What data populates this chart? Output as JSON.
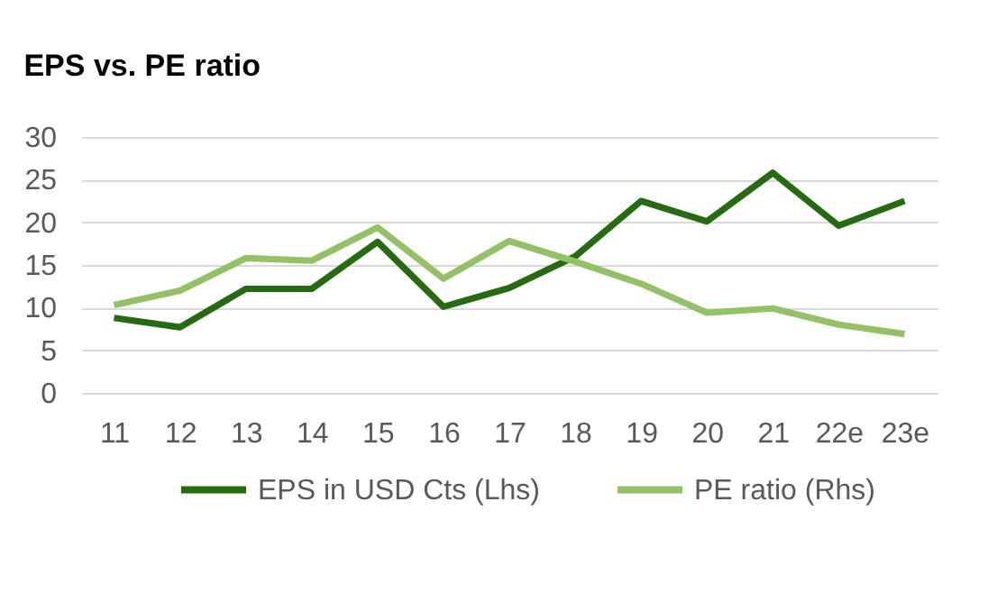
{
  "chart_data": {
    "type": "line",
    "title": "EPS vs. PE ratio",
    "categories": [
      "11",
      "12",
      "13",
      "14",
      "15",
      "16",
      "17",
      "18",
      "19",
      "20",
      "21",
      "22e",
      "23e"
    ],
    "series": [
      {
        "name": "EPS in USD Cts (Lhs)",
        "color": "#256b0f",
        "values": [
          8.8,
          7.7,
          12.2,
          12.2,
          17.7,
          10.1,
          12.3,
          16.0,
          22.5,
          20.1,
          25.8,
          19.6,
          22.5
        ]
      },
      {
        "name": "PE ratio (Rhs)",
        "color": "#93c166",
        "values": [
          10.3,
          12.0,
          15.8,
          15.5,
          19.4,
          13.4,
          17.8,
          15.4,
          12.8,
          9.4,
          9.9,
          8.0,
          6.9
        ]
      }
    ],
    "ylim": [
      0,
      30
    ],
    "yticks": [
      0,
      5,
      10,
      15,
      20,
      25,
      30
    ],
    "grid": "y",
    "legend": "bottom",
    "line_style": "solid"
  }
}
